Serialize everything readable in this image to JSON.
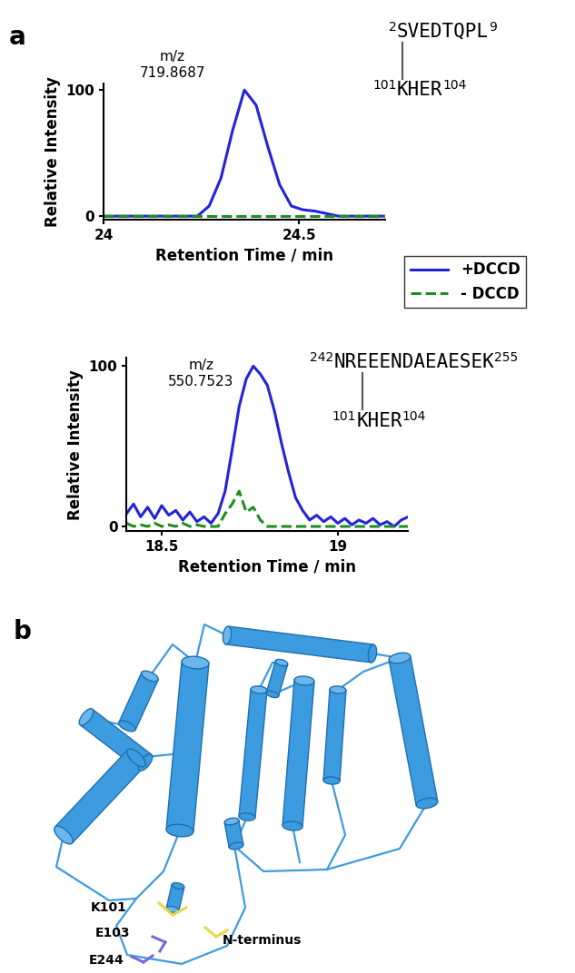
{
  "panel_labels": [
    "a",
    "b"
  ],
  "chart_data": [
    {
      "type": "line",
      "xlabel": "Retention Time / min",
      "ylabel": "Relative Intensity",
      "xlim": [
        24,
        24.72
      ],
      "xticks": [
        24,
        24.5
      ],
      "ylim": [
        -3,
        105
      ],
      "yticks": [
        0,
        100
      ],
      "legend": "upper left",
      "annotations": {
        "mz_label": "m/z",
        "mz": "719.8687",
        "peptide": {
          "start": "2",
          "sequence": "SVEDTQPL",
          "end": "9"
        },
        "crosslinked_peptide": {
          "start": "101",
          "sequence": "KHER",
          "end": "104"
        }
      },
      "x": [
        24.0,
        24.2,
        24.24,
        24.27,
        24.3,
        24.33,
        24.36,
        24.39,
        24.42,
        24.45,
        24.48,
        24.51,
        24.54,
        24.57,
        24.6,
        24.72
      ],
      "series": [
        {
          "name": "+DCCD",
          "color": "#2323dc",
          "line_style": "solid",
          "values": [
            0,
            0,
            0,
            8,
            30,
            68,
            100,
            88,
            55,
            25,
            8,
            5,
            4,
            2,
            0,
            0
          ]
        },
        {
          "name": "- DCCD",
          "color": "#228b22",
          "line_style": "dashed",
          "values": [
            0,
            0,
            0,
            0,
            0,
            0,
            0,
            0,
            0,
            0,
            0,
            0,
            0,
            0,
            0,
            0
          ]
        }
      ]
    },
    {
      "type": "line",
      "xlabel": "Retention Time / min",
      "ylabel": "Relative Intensity",
      "xlim": [
        18.4,
        19.2
      ],
      "xticks": [
        18.5,
        19
      ],
      "ylim": [
        -3,
        105
      ],
      "yticks": [
        0,
        100
      ],
      "annotations": {
        "mz_label": "m/z",
        "mz": "550.7523",
        "peptide": {
          "start": "242",
          "sequence": "NREEENDAEAESEK",
          "end": "255"
        },
        "crosslinked_peptide": {
          "start": "101",
          "sequence": "KHER",
          "end": "104"
        }
      },
      "x": [
        18.4,
        18.42,
        18.44,
        18.46,
        18.48,
        18.5,
        18.52,
        18.54,
        18.56,
        18.58,
        18.6,
        18.62,
        18.64,
        18.66,
        18.68,
        18.7,
        18.72,
        18.74,
        18.76,
        18.78,
        18.8,
        18.82,
        18.84,
        18.86,
        18.88,
        18.9,
        18.92,
        18.94,
        18.96,
        18.98,
        19.0,
        19.02,
        19.04,
        19.06,
        19.08,
        19.1,
        19.12,
        19.14,
        19.16,
        19.18,
        19.2
      ],
      "series": [
        {
          "name": "+DCCD",
          "color": "#2323dc",
          "line_style": "solid",
          "values": [
            8,
            14,
            6,
            12,
            5,
            13,
            7,
            10,
            4,
            9,
            3,
            6,
            2,
            8,
            22,
            48,
            75,
            92,
            100,
            95,
            88,
            72,
            52,
            34,
            18,
            10,
            4,
            7,
            3,
            6,
            2,
            5,
            1,
            4,
            2,
            5,
            1,
            3,
            0,
            4,
            6
          ]
        },
        {
          "name": "- DCCD",
          "color": "#228b22",
          "line_style": "dashed",
          "values": [
            2,
            0,
            1,
            0,
            2,
            0,
            1,
            0,
            2,
            0,
            1,
            0,
            0,
            0,
            8,
            14,
            22,
            9,
            12,
            4,
            0,
            0,
            0,
            0,
            0,
            0,
            0,
            0,
            0,
            0,
            0,
            0,
            0,
            0,
            0,
            0,
            0,
            0,
            0,
            0,
            0
          ]
        }
      ]
    }
  ],
  "structure": {
    "labels": [
      "K101",
      "E103",
      "E244",
      "N-terminus"
    ]
  }
}
